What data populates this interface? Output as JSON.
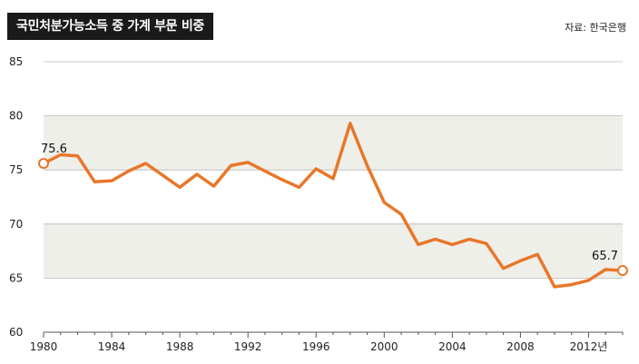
{
  "header": {
    "title": "국민처분가능소득 중 가계 부문 비중",
    "source": "자료: 한국은행"
  },
  "chart_data": {
    "type": "line",
    "x": [
      1980,
      1981,
      1982,
      1983,
      1984,
      1985,
      1986,
      1987,
      1988,
      1989,
      1990,
      1991,
      1992,
      1993,
      1994,
      1995,
      1996,
      1997,
      1998,
      1999,
      2000,
      2001,
      2002,
      2003,
      2004,
      2005,
      2006,
      2007,
      2008,
      2009,
      2010,
      2011,
      2012,
      2013,
      2014
    ],
    "series": [
      {
        "values": [
          75.6,
          76.4,
          76.3,
          73.9,
          74.0,
          74.9,
          75.6,
          74.5,
          73.4,
          74.6,
          73.5,
          75.4,
          75.7,
          74.9,
          74.1,
          73.4,
          75.1,
          74.2,
          79.3,
          75.4,
          72.0,
          70.9,
          68.1,
          68.6,
          68.1,
          68.6,
          68.2,
          65.9,
          66.6,
          67.2,
          64.2,
          64.4,
          64.8,
          65.8,
          65.7
        ],
        "color": "#e8772a"
      }
    ],
    "xticks": [
      1980,
      1984,
      1988,
      1992,
      1996,
      2000,
      2004,
      2008,
      2012
    ],
    "xtick_labels": [
      "1980",
      "1984",
      "1988",
      "1992",
      "1996",
      "2000",
      "2004",
      "2008",
      "2012년"
    ],
    "yticks": [
      60,
      65,
      70,
      75,
      80,
      85
    ],
    "ylim": [
      60,
      85
    ],
    "xlim": [
      1980,
      2014
    ],
    "annotations": [
      {
        "x": 1980,
        "y": 75.6,
        "text": "75.6"
      },
      {
        "x": 2014,
        "y": 65.7,
        "text": "65.7"
      }
    ],
    "band_color": "#efefea",
    "line_color": "#e8772a"
  }
}
